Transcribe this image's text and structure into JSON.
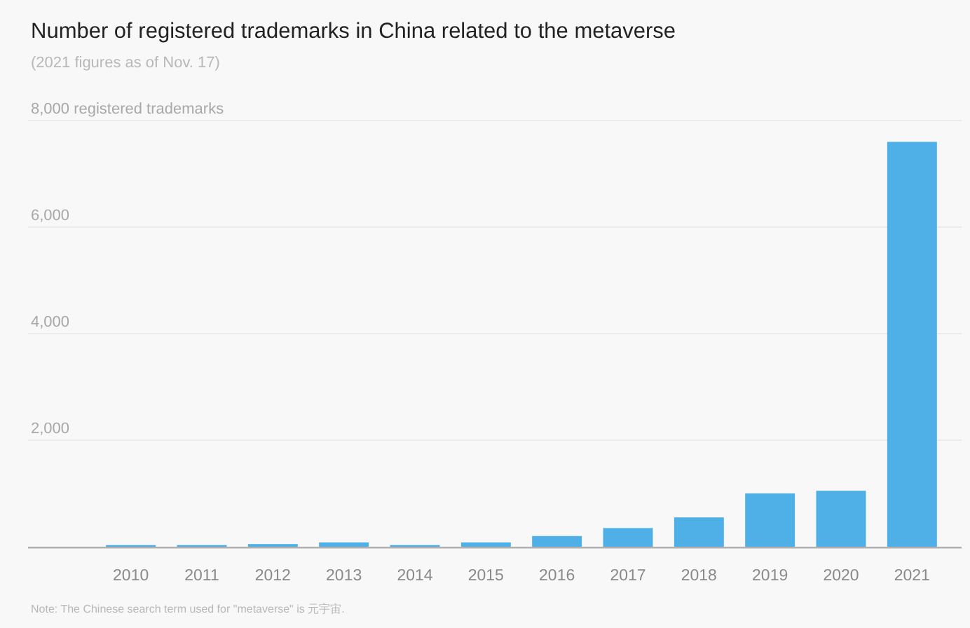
{
  "chart_data": {
    "type": "bar",
    "title": "Number of registered trademarks in China related to the metaverse",
    "subtitle": "(2021 figures as of Nov. 17)",
    "categories": [
      "2010",
      "2011",
      "2012",
      "2013",
      "2014",
      "2015",
      "2016",
      "2017",
      "2018",
      "2019",
      "2020",
      "2021"
    ],
    "values": [
      30,
      30,
      50,
      80,
      30,
      80,
      200,
      350,
      550,
      1000,
      1050,
      7600
    ],
    "color": "#4eb0e6",
    "ylim": [
      0,
      8000
    ],
    "yticks": [
      {
        "value": 2000,
        "label": "2,000"
      },
      {
        "value": 4000,
        "label": "4,000"
      },
      {
        "value": 6000,
        "label": "6,000"
      },
      {
        "value": 8000,
        "label": "8,000 registered trademarks"
      }
    ],
    "grid": "y",
    "annotations": [
      "Note: The Chinese search term used for \"metaverse\" is 元宇宙."
    ]
  }
}
